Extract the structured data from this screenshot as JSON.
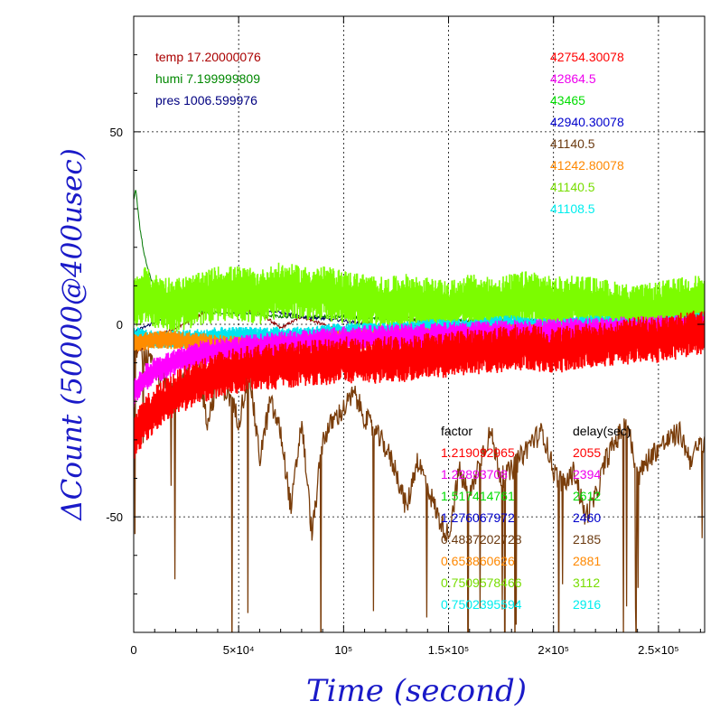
{
  "chart_data": {
    "type": "line",
    "xlabel": "Time (second)",
    "ylabel": "ΔCount (50000@400usec)",
    "xlim": [
      0,
      272000
    ],
    "ylim": [
      -80,
      80
    ],
    "x_ticks": [
      {
        "value": 0,
        "label": "0"
      },
      {
        "value": 50000,
        "label": "5×10⁴"
      },
      {
        "value": 100000,
        "label": "10⁵"
      },
      {
        "value": 150000,
        "label": "1.5×10⁵"
      },
      {
        "value": 200000,
        "label": "2×10⁵"
      },
      {
        "value": 250000,
        "label": "2.5×10⁵"
      }
    ],
    "y_ticks": [
      {
        "value": -50,
        "label": "-50"
      },
      {
        "value": 0,
        "label": "0"
      },
      {
        "value": 50,
        "label": "50"
      }
    ],
    "grid": true,
    "environment": [
      {
        "label": "temp 17.20000076",
        "color": "#aa0000"
      },
      {
        "label": "humi 7.199999809",
        "color": "#008800"
      },
      {
        "label": "pres 1006.599976",
        "color": "#000080"
      }
    ],
    "series_values": [
      {
        "label": "42754.30078",
        "color": "#ff0000"
      },
      {
        "label": "42864.5",
        "color": "#ee00ee"
      },
      {
        "label": "43465",
        "color": "#00dd00"
      },
      {
        "label": "42940.30078",
        "color": "#0000cc"
      },
      {
        "label": "41140.5",
        "color": "#6b3a10"
      },
      {
        "label": "41242.80078",
        "color": "#ff8800"
      },
      {
        "label": "41140.5",
        "color": "#77dd00"
      },
      {
        "label": "41108.5",
        "color": "#00eeee"
      }
    ],
    "factor_header": "factor",
    "delay_header": "delay(sec)",
    "factors": [
      {
        "factor": "1.219092965",
        "delay": "2055",
        "color": "#ff0000"
      },
      {
        "factor": "1.22893708",
        "delay": "2394",
        "color": "#ee00ee"
      },
      {
        "factor": "1.517414761",
        "delay": "2612",
        "color": "#00dd00"
      },
      {
        "factor": "1.276067972",
        "delay": "2460",
        "color": "#0000cc"
      },
      {
        "factor": "0.4837202728",
        "delay": "2185",
        "color": "#6b3a10"
      },
      {
        "factor": "0.653860626",
        "delay": "2881",
        "color": "#ff8800"
      },
      {
        "factor": "0.7509578466",
        "delay": "3112",
        "color": "#77dd00"
      },
      {
        "factor": "0.7502395594",
        "delay": "2916",
        "color": "#00eeee"
      }
    ],
    "series": [
      {
        "name": "temp",
        "color": "#8b0000",
        "style": "thin",
        "x": [
          0,
          5000,
          10000,
          20000,
          30000,
          40000,
          50000,
          60000,
          70000,
          80000,
          90000,
          100000,
          110000,
          120000,
          130000,
          140000,
          150000,
          160000,
          170000,
          180000,
          190000,
          200000,
          210000,
          220000,
          230000,
          240000,
          250000,
          260000,
          272000
        ],
        "y": [
          -8,
          -6,
          -3,
          -1,
          2,
          5,
          4,
          3,
          -1,
          2,
          0,
          -2,
          1,
          -2,
          2,
          0,
          -1,
          1,
          -2,
          2,
          0,
          -3,
          1,
          -1,
          2,
          -4,
          1,
          0,
          2
        ]
      },
      {
        "name": "humi",
        "color": "#007700",
        "style": "thin",
        "x": [
          0,
          1000,
          2000,
          3000,
          5000,
          8000,
          12000,
          18000,
          25000,
          35000,
          50000,
          70000,
          100000,
          140000,
          180000,
          220000,
          272000
        ],
        "y": [
          32,
          35,
          30,
          25,
          18,
          12,
          8,
          5,
          4,
          3,
          3,
          2,
          2,
          1,
          1,
          1,
          1
        ]
      },
      {
        "name": "pres",
        "color": "#000060",
        "style": "thin",
        "x": [
          0,
          20000,
          40000,
          60000,
          80000,
          100000,
          120000,
          140000,
          160000,
          180000,
          200000,
          220000,
          240000,
          260000,
          272000
        ],
        "y": [
          -2,
          3,
          5,
          4,
          2,
          1,
          -1,
          0,
          -1,
          0,
          -2,
          0,
          -4,
          -2,
          0
        ]
      },
      {
        "name": "41140.5",
        "color": "#7a3d0a",
        "style": "noisy",
        "spikes": true,
        "x": [
          0,
          5000,
          10000,
          15000,
          20000,
          25000,
          30000,
          35000,
          40000,
          45000,
          50000,
          55000,
          60000,
          65000,
          70000,
          75000,
          80000,
          85000,
          90000,
          95000,
          100000,
          105000,
          110000,
          115000,
          120000,
          125000,
          130000,
          135000,
          140000,
          145000,
          150000,
          155000,
          160000,
          165000,
          170000,
          175000,
          180000,
          185000,
          190000,
          195000,
          200000,
          205000,
          210000,
          215000,
          220000,
          225000,
          230000,
          235000,
          240000,
          245000,
          250000,
          255000,
          260000,
          265000,
          272000
        ],
        "y": [
          -5,
          -8,
          -12,
          -15,
          -20,
          -12,
          -8,
          -25,
          -15,
          -18,
          -25,
          -12,
          -35,
          -20,
          -28,
          -48,
          -25,
          -55,
          -30,
          -25,
          -22,
          -18,
          -24,
          -28,
          -32,
          -38,
          -48,
          -35,
          -42,
          -50,
          -55,
          -38,
          -45,
          -35,
          -28,
          -40,
          -38,
          -34,
          -30,
          -28,
          -38,
          -42,
          -38,
          -50,
          -45,
          -35,
          -30,
          -25,
          -40,
          -35,
          -32,
          -30,
          -28,
          -35,
          -30
        ]
      },
      {
        "name": "41140.5 (b)",
        "color": "#7cfc00",
        "style": "band",
        "amp": 6,
        "x": [
          0,
          5000,
          10000,
          20000,
          30000,
          40000,
          50000,
          60000,
          70000,
          80000,
          90000,
          100000,
          110000,
          120000,
          130000,
          140000,
          150000,
          160000,
          170000,
          180000,
          190000,
          200000,
          210000,
          220000,
          230000,
          240000,
          250000,
          260000,
          272000
        ],
        "y": [
          5,
          8,
          6,
          5,
          6,
          8,
          8,
          7,
          9,
          8,
          8,
          7,
          6,
          5,
          6,
          5,
          4,
          6,
          5,
          6,
          7,
          5,
          6,
          5,
          4,
          3,
          4,
          5,
          6
        ]
      },
      {
        "name": "41108.5",
        "color": "#00e5ee",
        "style": "band",
        "amp": 2,
        "x": [
          0,
          10000,
          20000,
          40000,
          60000,
          80000,
          100000,
          120000,
          140000,
          160000,
          180000,
          200000,
          220000,
          240000,
          260000,
          272000
        ],
        "y": [
          -3,
          -4,
          -4,
          -3,
          -3,
          -3,
          -2,
          -2,
          -1,
          -1,
          0,
          -1,
          0,
          -1,
          0,
          1
        ]
      },
      {
        "name": "41242.80078",
        "color": "#ff8c00",
        "style": "band",
        "amp": 2,
        "x": [
          0,
          10000,
          20000,
          40000,
          60000,
          80000,
          100000,
          150000,
          200000,
          272000
        ],
        "y": [
          -5,
          -4,
          -4,
          -5,
          -6,
          -5,
          -4,
          -3,
          -2,
          -1
        ]
      },
      {
        "name": "42864.5",
        "color": "#ff00ff",
        "style": "band",
        "amp": 3,
        "x": [
          0,
          5000,
          10000,
          20000,
          30000,
          40000,
          60000,
          80000,
          100000,
          150000,
          200000,
          272000
        ],
        "y": [
          -18,
          -14,
          -12,
          -10,
          -8,
          -7,
          -6,
          -5,
          -4,
          -3,
          -2,
          -1
        ]
      },
      {
        "name": "42754.30078",
        "color": "#ff0000",
        "style": "band",
        "amp": 5,
        "x": [
          0,
          5000,
          10000,
          20000,
          30000,
          40000,
          50000,
          60000,
          70000,
          80000,
          90000,
          100000,
          110000,
          120000,
          130000,
          140000,
          150000,
          160000,
          170000,
          180000,
          190000,
          200000,
          210000,
          220000,
          230000,
          240000,
          250000,
          260000,
          272000
        ],
        "y": [
          -30,
          -25,
          -22,
          -18,
          -15,
          -13,
          -12,
          -11,
          -11,
          -10,
          -10,
          -9,
          -10,
          -9,
          -9,
          -8,
          -8,
          -7,
          -7,
          -6,
          -6,
          -7,
          -6,
          -5,
          -5,
          -4,
          -4,
          -3,
          -2
        ]
      }
    ]
  }
}
